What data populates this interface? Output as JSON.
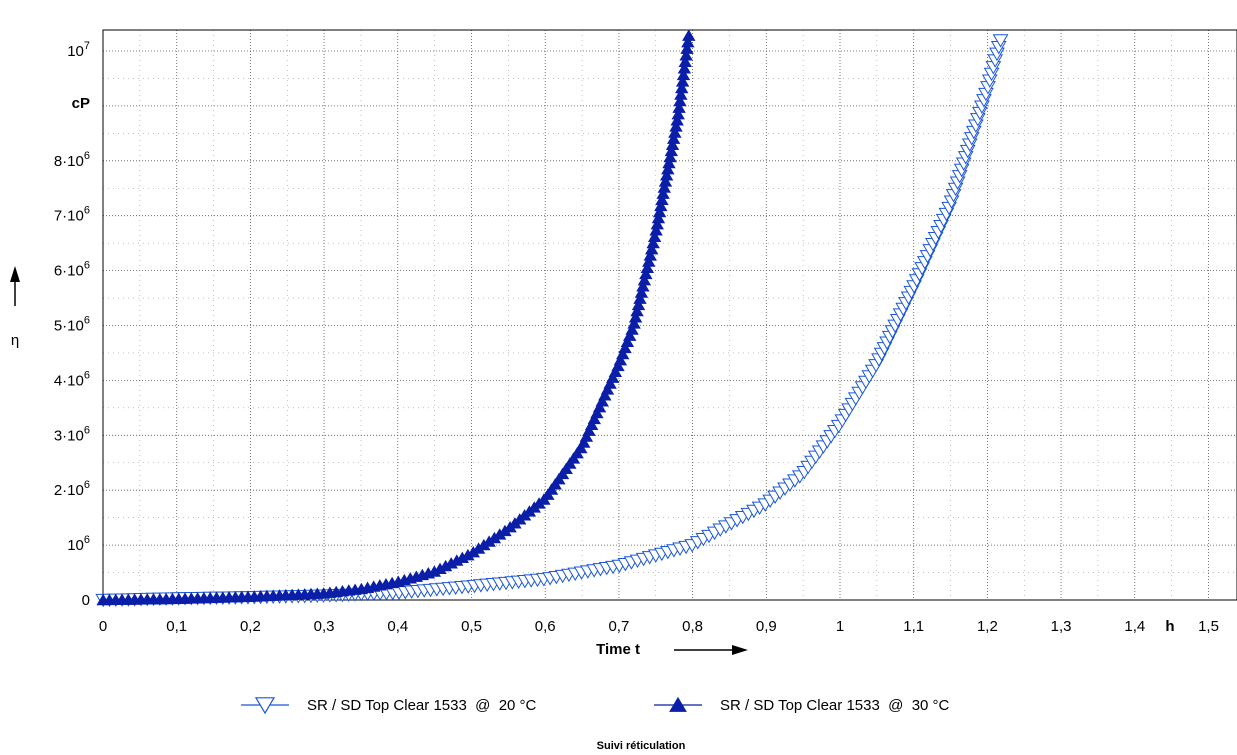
{
  "chart_data": {
    "type": "scatter",
    "title": "",
    "footer": "Suivi réticulation",
    "xlabel": "Time t",
    "xunit": "h",
    "ylabel": "η",
    "yunit": "cP",
    "xlim": [
      0,
      1.55
    ],
    "ylim": [
      0,
      10300000
    ],
    "grid": true,
    "legend_position": "bottom",
    "x_ticks": [
      "0",
      "0,1",
      "0,2",
      "0,3",
      "0,4",
      "0,5",
      "0,6",
      "0,7",
      "0,8",
      "0,9",
      "1",
      "1,1",
      "1,2",
      "1,3",
      "1,4",
      "1,5"
    ],
    "y_tick_labels": [
      {
        "value": 0,
        "mantissa": "0",
        "exponent": ""
      },
      {
        "value": 1000000,
        "mantissa": "10",
        "exponent": "6"
      },
      {
        "value": 2000000,
        "mantissa": "2·10",
        "exponent": "6"
      },
      {
        "value": 3000000,
        "mantissa": "3·10",
        "exponent": "6"
      },
      {
        "value": 4000000,
        "mantissa": "4·10",
        "exponent": "6"
      },
      {
        "value": 5000000,
        "mantissa": "5·10",
        "exponent": "6"
      },
      {
        "value": 6000000,
        "mantissa": "6·10",
        "exponent": "6"
      },
      {
        "value": 7000000,
        "mantissa": "7·10",
        "exponent": "6"
      },
      {
        "value": 8000000,
        "mantissa": "8·10",
        "exponent": "6"
      },
      {
        "value": 10000000,
        "mantissa": "10",
        "exponent": "7"
      }
    ],
    "series": [
      {
        "name": "SR / SD Top Clear 1533  @  20 °C",
        "marker": "triangle-down-open",
        "color": "#1a56d6",
        "x": [
          0,
          0.1,
          0.2,
          0.3,
          0.4,
          0.5,
          0.6,
          0.7,
          0.8,
          0.9,
          0.95,
          1.0,
          1.05,
          1.1,
          1.15,
          1.2,
          1.22
        ],
        "y": [
          0,
          30000,
          50000,
          80000,
          130000,
          250000,
          380000,
          620000,
          1000000,
          1750000,
          2300000,
          3200000,
          4300000,
          5700000,
          7200000,
          9300000,
          10300000
        ]
      },
      {
        "name": "SR / SD Top Clear 1533  @  30 °C",
        "marker": "triangle-up-filled",
        "color": "#0a1ea8",
        "x": [
          0,
          0.1,
          0.2,
          0.3,
          0.35,
          0.4,
          0.45,
          0.5,
          0.55,
          0.6,
          0.65,
          0.7,
          0.72,
          0.75,
          0.78,
          0.795
        ],
        "y": [
          0,
          20000,
          60000,
          120000,
          200000,
          330000,
          520000,
          850000,
          1300000,
          1850000,
          2800000,
          4300000,
          5000000,
          6700000,
          8800000,
          10300000
        ]
      }
    ]
  }
}
